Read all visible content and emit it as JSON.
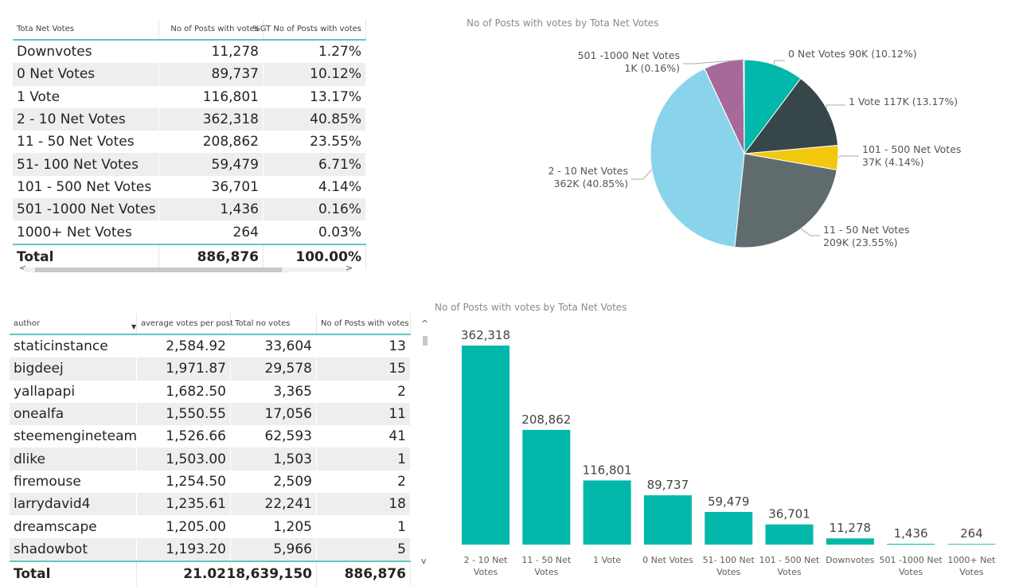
{
  "table1": {
    "headers": [
      "Tota Net Votes",
      "No of Posts with votes",
      "%GT No of Posts with votes"
    ],
    "rows": [
      [
        "Downvotes",
        "11,278",
        "1.27%"
      ],
      [
        "0 Net Votes",
        "89,737",
        "10.12%"
      ],
      [
        "1 Vote",
        "116,801",
        "13.17%"
      ],
      [
        "2 - 10  Net Votes",
        "362,318",
        "40.85%"
      ],
      [
        "11 - 50 Net Votes",
        "208,862",
        "23.55%"
      ],
      [
        "51- 100 Net Votes",
        "59,479",
        "6.71%"
      ],
      [
        "101 - 500 Net Votes",
        "36,701",
        "4.14%"
      ],
      [
        "501 -1000 Net Votes",
        "1,436",
        "0.16%"
      ],
      [
        "1000+  Net Votes",
        "264",
        "0.03%"
      ]
    ],
    "total": [
      "Total",
      "886,876",
      "100.00%"
    ],
    "scroll_left": "<",
    "scroll_right": ">"
  },
  "table2": {
    "headers": [
      "author",
      "average votes per post",
      "Total no votes",
      "No of Posts with votes"
    ],
    "rows": [
      [
        "staticinstance",
        "2,584.92",
        "33,604",
        "13"
      ],
      [
        "bigdeej",
        "1,971.87",
        "29,578",
        "15"
      ],
      [
        "yallapapi",
        "1,682.50",
        "3,365",
        "2"
      ],
      [
        "onealfa",
        "1,550.55",
        "17,056",
        "11"
      ],
      [
        "steemengineteam",
        "1,526.66",
        "62,593",
        "41"
      ],
      [
        "dlike",
        "1,503.00",
        "1,503",
        "1"
      ],
      [
        "firemouse",
        "1,254.50",
        "2,509",
        "2"
      ],
      [
        "larrydavid4",
        "1,235.61",
        "22,241",
        "18"
      ],
      [
        "dreamscape",
        "1,205.00",
        "1,205",
        "1"
      ],
      [
        "shadowbot",
        "1,193.20",
        "5,966",
        "5"
      ]
    ],
    "total": [
      "Total",
      "21.02",
      "18,639,150",
      "886,876"
    ],
    "sort_glyph": "▼",
    "scroll_up": "^",
    "scroll_down": "v"
  },
  "chart_data": [
    {
      "type": "pie",
      "title": "No of Posts with votes by Tota Net Votes",
      "slices": [
        {
          "name": "0 Net Votes",
          "value": 89737,
          "label": "0 Net Votes 90K (10.12%)",
          "color": "#01b8aa"
        },
        {
          "name": "1 Vote",
          "value": 116801,
          "label": "1 Vote 117K (13.17%)",
          "color": "#374649"
        },
        {
          "name": "101 - 500 Net Votes",
          "value": 36701,
          "label": "101 - 500 Net Votes\n37K (4.14%)",
          "color": "#f2c80f"
        },
        {
          "name": "11 - 50 Net Votes",
          "value": 208862,
          "label": "11 - 50 Net Votes\n209K (23.55%)",
          "color": "#5f6b6d"
        },
        {
          "name": "2 - 10 Net Votes",
          "value": 362318,
          "label": "2 - 10 Net Votes\n362K (40.85%)",
          "color": "#8ad4eb"
        },
        {
          "name": "1000+ Net Votes",
          "value": 264,
          "label": "",
          "color": "#fe9666"
        },
        {
          "name": "51- 100 Net Votes",
          "value": 59479,
          "label": "",
          "color": "#a66999"
        },
        {
          "name": "501 -1000 Net Votes",
          "value": 1436,
          "label": "501 -1000 Net Votes\n1K (0.16%)",
          "color": "#3599b8"
        }
      ]
    },
    {
      "type": "bar",
      "title": "No of Posts with votes by Tota Net Votes",
      "categories": [
        "2 - 10 Net\nVotes",
        "11 - 50 Net\nVotes",
        "1 Vote",
        "0 Net Votes",
        "51- 100 Net\nVotes",
        "101 - 500 Net\nVotes",
        "Downvotes",
        "501 -1000 Net\nVotes",
        "1000+ Net\nVotes"
      ],
      "values": [
        362318,
        208862,
        116801,
        89737,
        59479,
        36701,
        11278,
        1436,
        264
      ],
      "data_labels": [
        "362,318",
        "208,862",
        "116,801",
        "89,737",
        "59,479",
        "36,701",
        "11,278",
        "1,436",
        "264"
      ],
      "color": "#01b8aa",
      "ylim": [
        0,
        362318
      ]
    }
  ]
}
